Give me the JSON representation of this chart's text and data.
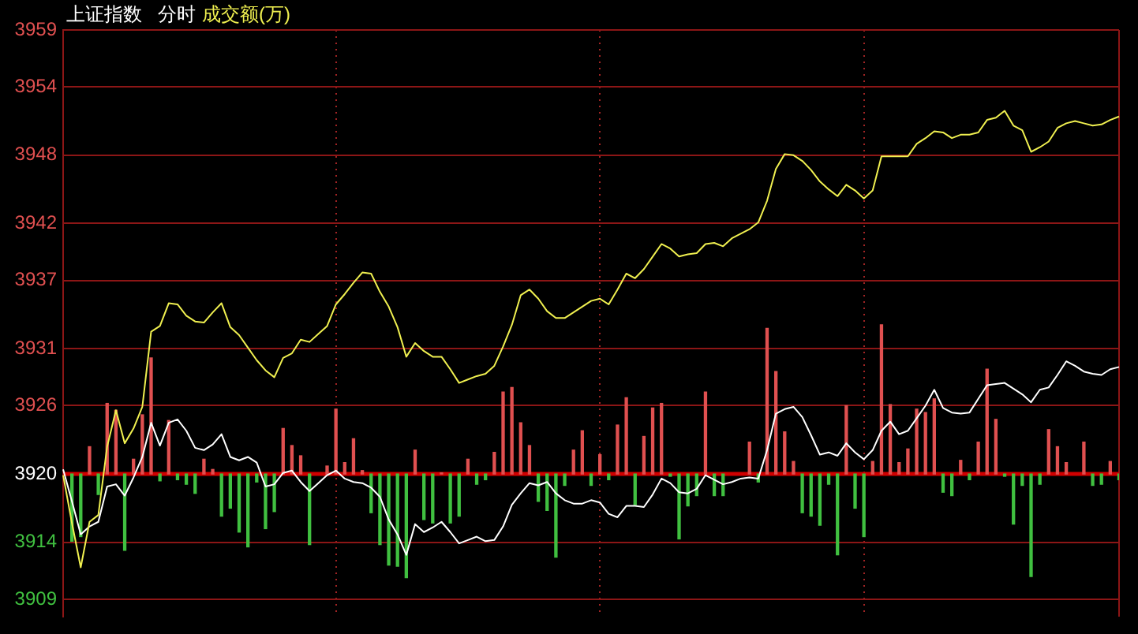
{
  "chart_data": {
    "type": "line",
    "title": "上证指数",
    "subtitle": "分时",
    "categories": [
      null,
      null,
      null,
      null,
      null,
      null,
      null,
      null,
      null,
      null,
      null,
      null,
      null,
      null,
      null,
      null,
      null,
      null,
      null,
      null,
      null,
      null,
      null,
      null,
      null,
      null,
      null,
      null,
      null,
      null,
      null,
      null,
      null,
      null,
      null,
      null,
      null,
      null,
      null,
      null,
      null,
      null,
      null,
      null,
      null,
      null,
      null,
      null,
      null,
      null,
      null,
      null,
      null,
      null,
      null,
      null,
      null,
      null,
      null,
      null,
      null,
      null,
      null,
      null,
      null,
      null,
      null,
      null,
      null,
      null,
      null,
      null,
      null,
      null,
      null,
      null,
      null,
      null,
      null,
      null,
      null,
      null,
      null,
      null,
      null,
      null,
      null,
      null,
      null,
      null,
      null,
      null,
      null,
      null,
      null,
      null,
      null,
      null,
      null,
      null,
      null,
      null,
      null,
      null,
      null,
      null,
      null,
      null,
      null,
      null,
      null,
      null,
      null,
      null,
      null,
      null,
      null,
      null,
      null,
      null,
      null
    ],
    "series": [
      {
        "name": "成交额(万)",
        "color": "#f0f050",
        "values": [
          3919.9,
          3915.7,
          3911.8,
          3915.8,
          3916.4,
          3922.4,
          3925.6,
          3922.7,
          3924.0,
          3925.9,
          3932.5,
          3933.0,
          3935.0,
          3934.9,
          3933.9,
          3933.4,
          3933.3,
          3934.2,
          3935.0,
          3932.9,
          3932.2,
          3931.1,
          3930.0,
          3929.1,
          3928.5,
          3930.2,
          3930.6,
          3931.8,
          3931.6,
          3932.3,
          3933.0,
          3934.9,
          3935.8,
          3936.8,
          3937.7,
          3937.6,
          3936.0,
          3934.7,
          3932.9,
          3930.3,
          3931.5,
          3930.8,
          3930.3,
          3930.3,
          3929.2,
          3928.0,
          3928.3,
          3928.6,
          3928.8,
          3929.5,
          3931.2,
          3933.1,
          3935.7,
          3936.2,
          3935.4,
          3934.3,
          3933.7,
          3933.7,
          3934.2,
          3934.7,
          3935.2,
          3935.4,
          3934.9,
          3936.2,
          3937.6,
          3937.2,
          3938.0,
          3939.1,
          3940.2,
          3939.8,
          3939.1,
          3939.3,
          3939.4,
          3940.2,
          3940.3,
          3940.0,
          3940.7,
          3941.1,
          3941.5,
          3942.1,
          3944.0,
          3946.8,
          3948.1,
          3948.0,
          3947.5,
          3946.7,
          3945.7,
          3945.0,
          3944.4,
          3945.4,
          3944.9,
          3944.2,
          3944.9,
          3947.9,
          3947.9,
          3947.9,
          3947.9,
          3949.0,
          3949.5,
          3950.1,
          3950.0,
          3949.5,
          3949.8,
          3949.8,
          3950.0,
          3951.1,
          3951.3,
          3951.9,
          3950.6,
          3950.2,
          3948.3,
          3948.7,
          3949.2,
          3950.4,
          3950.8,
          3951.0,
          3950.8,
          3950.6,
          3950.7,
          3951.1,
          3951.4
        ]
      },
      {
        "color": "#ffffff",
        "values": [
          3920.4,
          3917.6,
          3914.7,
          3915.4,
          3915.8,
          3918.9,
          3919.1,
          3918.1,
          3919.7,
          3921.5,
          3924.5,
          3922.5,
          3924.5,
          3924.8,
          3923.8,
          3922.3,
          3922.1,
          3922.6,
          3923.5,
          3921.5,
          3921.2,
          3921.5,
          3921.0,
          3918.9,
          3919.1,
          3920.1,
          3920.3,
          3919.3,
          3918.5,
          3919.2,
          3919.9,
          3920.3,
          3919.6,
          3919.3,
          3919.2,
          3918.8,
          3918.0,
          3916.0,
          3914.7,
          3912.9,
          3915.6,
          3914.9,
          3915.3,
          3915.8,
          3914.9,
          3913.9,
          3914.2,
          3914.5,
          3914.1,
          3914.2,
          3915.4,
          3917.3,
          3918.3,
          3919.2,
          3919.0,
          3919.3,
          3918.3,
          3917.7,
          3917.4,
          3917.4,
          3917.7,
          3917.5,
          3916.5,
          3916.2,
          3917.2,
          3917.2,
          3917.1,
          3918.2,
          3919.6,
          3919.2,
          3918.4,
          3918.3,
          3918.7,
          3919.9,
          3919.5,
          3919.1,
          3919.3,
          3919.6,
          3919.7,
          3919.6,
          3922.1,
          3925.3,
          3925.7,
          3925.9,
          3925.0,
          3923.4,
          3921.7,
          3921.9,
          3921.6,
          3922.7,
          3921.9,
          3921.3,
          3922.1,
          3923.8,
          3924.6,
          3923.5,
          3923.8,
          3924.9,
          3926.0,
          3927.4,
          3925.8,
          3925.4,
          3925.3,
          3925.4,
          3926.6,
          3927.8,
          3927.9,
          3928.0,
          3927.5,
          3927.0,
          3926.3,
          3927.4,
          3927.6,
          3928.7,
          3929.9,
          3929.5,
          3929.0,
          3928.8,
          3928.7,
          3929.2,
          3929.4
        ]
      },
      {
        "type": "bar",
        "values": [
          null,
          -5.9,
          -5.5,
          2.4,
          -1.8,
          6.2,
          5.6,
          -6.7,
          1.3,
          5.2,
          10.2,
          -0.6,
          4.7,
          -0.5,
          -0.9,
          -1.7,
          1.3,
          0.4,
          -3.7,
          -3.0,
          -5.1,
          -6.4,
          -0.7,
          -4.8,
          -3.3,
          4.0,
          2.5,
          1.6,
          -6.2,
          null,
          0.7,
          5.7,
          1.0,
          3.1,
          0.3,
          -3.4,
          -6.2,
          -8.0,
          -8.1,
          -9.1,
          2.1,
          -4.0,
          -4.3,
          0.1,
          -4.3,
          -3.7,
          1.3,
          -0.9,
          -0.5,
          1.9,
          7.2,
          7.6,
          4.5,
          2.5,
          -2.4,
          -3.2,
          -7.3,
          -1.0,
          2.1,
          3.8,
          -1.0,
          1.7,
          -0.5,
          4.3,
          6.7,
          -2.7,
          3.3,
          5.8,
          6.2,
          -0.2,
          -5.7,
          -2.8,
          -1.9,
          7.2,
          -1.9,
          -1.9,
          null,
          null,
          2.8,
          -0.7,
          12.8,
          9.0,
          3.7,
          1.1,
          -3.4,
          -3.7,
          -4.5,
          -0.9,
          -7.1,
          6.0,
          -3.0,
          -5.5,
          1.1,
          13.1,
          6.1,
          1.0,
          2.2,
          5.7,
          5.4,
          6.6,
          -1.6,
          -1.9,
          1.2,
          -0.5,
          2.8,
          9.2,
          4.8,
          -0.2,
          -4.4,
          -1.0,
          -9.0,
          -0.9,
          3.9,
          2.4,
          1.0,
          null,
          2.8,
          -1.0,
          -0.9,
          1.1,
          -0.5
        ],
        "base": [
          null,
          3920,
          3920,
          3920,
          3920,
          3920,
          3920,
          3920,
          3920,
          3920,
          3920,
          3920,
          3920,
          3920,
          3920,
          3920,
          3920,
          3920,
          3920,
          3920,
          3920,
          3920,
          3920,
          3920,
          3920,
          3920,
          3920,
          3920,
          3920,
          null,
          3920,
          3920,
          3920,
          3920,
          3920,
          3920,
          3920,
          3920,
          3920,
          3920,
          3920,
          3920,
          3920,
          3920,
          3920,
          3920,
          3920,
          3920,
          3920,
          3920,
          3920,
          3920,
          3920,
          3920,
          3920,
          3920,
          3920,
          3920,
          3920,
          3920,
          3920,
          3920,
          3920,
          3920,
          3920,
          3920,
          3920,
          3920,
          3920,
          3920,
          3920,
          3920,
          3920,
          3920,
          3920,
          3920,
          null,
          null,
          3920,
          3920,
          3920,
          3920,
          3920,
          3920,
          3920,
          3920,
          3920,
          3920,
          3920,
          3920,
          3920,
          3920,
          3920,
          3920,
          3920,
          3920,
          3920,
          3920,
          3920,
          3920,
          3920,
          3920,
          3920,
          3920,
          3920,
          3920,
          3920,
          3920,
          3920,
          3920,
          3920,
          3920,
          3920,
          3920,
          3920,
          null,
          3920,
          3920,
          3920,
          3920,
          3920
        ],
        "colors": [
          null,
          "#40c040",
          "#40c040",
          "#e05050",
          "#40c040",
          "#e05050",
          "#e05050",
          "#40c040",
          "#e05050",
          "#e05050",
          "#e05050",
          "#40c040",
          "#e05050",
          "#40c040",
          "#40c040",
          "#40c040",
          "#e05050",
          "#e05050",
          "#40c040",
          "#40c040",
          "#40c040",
          "#40c040",
          "#40c040",
          "#40c040",
          "#40c040",
          "#e05050",
          "#e05050",
          "#e05050",
          "#40c040",
          null,
          "#e05050",
          "#e05050",
          "#e05050",
          "#e05050",
          "#e05050",
          "#40c040",
          "#40c040",
          "#40c040",
          "#40c040",
          "#40c040",
          "#e05050",
          "#40c040",
          "#40c040",
          "#e05050",
          "#40c040",
          "#40c040",
          "#e05050",
          "#40c040",
          "#40c040",
          "#e05050",
          "#e05050",
          "#e05050",
          "#e05050",
          "#e05050",
          "#40c040",
          "#40c040",
          "#40c040",
          "#40c040",
          "#e05050",
          "#e05050",
          "#40c040",
          "#e05050",
          "#40c040",
          "#e05050",
          "#e05050",
          "#40c040",
          "#e05050",
          "#e05050",
          "#e05050",
          "#40c040",
          "#40c040",
          "#40c040",
          "#40c040",
          "#e05050",
          "#40c040",
          "#40c040",
          null,
          null,
          "#e05050",
          "#40c040",
          "#e05050",
          "#e05050",
          "#e05050",
          "#e05050",
          "#40c040",
          "#40c040",
          "#40c040",
          "#40c040",
          "#40c040",
          "#e05050",
          "#40c040",
          "#40c040",
          "#e05050",
          "#e05050",
          "#e05050",
          "#e05050",
          "#e05050",
          "#e05050",
          "#e05050",
          "#e05050",
          "#40c040",
          "#40c040",
          "#e05050",
          "#40c040",
          "#e05050",
          "#e05050",
          "#e05050",
          "#40c040",
          "#40c040",
          "#40c040",
          "#40c040",
          "#40c040",
          "#e05050",
          "#e05050",
          "#e05050",
          null,
          "#e05050",
          "#40c040",
          "#40c040",
          "#e05050",
          "#40c040"
        ]
      }
    ],
    "ylim": [
      3907.5,
      3959
    ],
    "yticks": [
      3909,
      3914,
      3920,
      3926,
      3931,
      3937,
      3942,
      3948,
      3954,
      3959
    ],
    "ref_lines": [
      {
        "axis": "y",
        "value": 3920,
        "color": "#d00000"
      }
    ],
    "grid": true,
    "legend": "top left",
    "tick_labels": "y"
  }
}
